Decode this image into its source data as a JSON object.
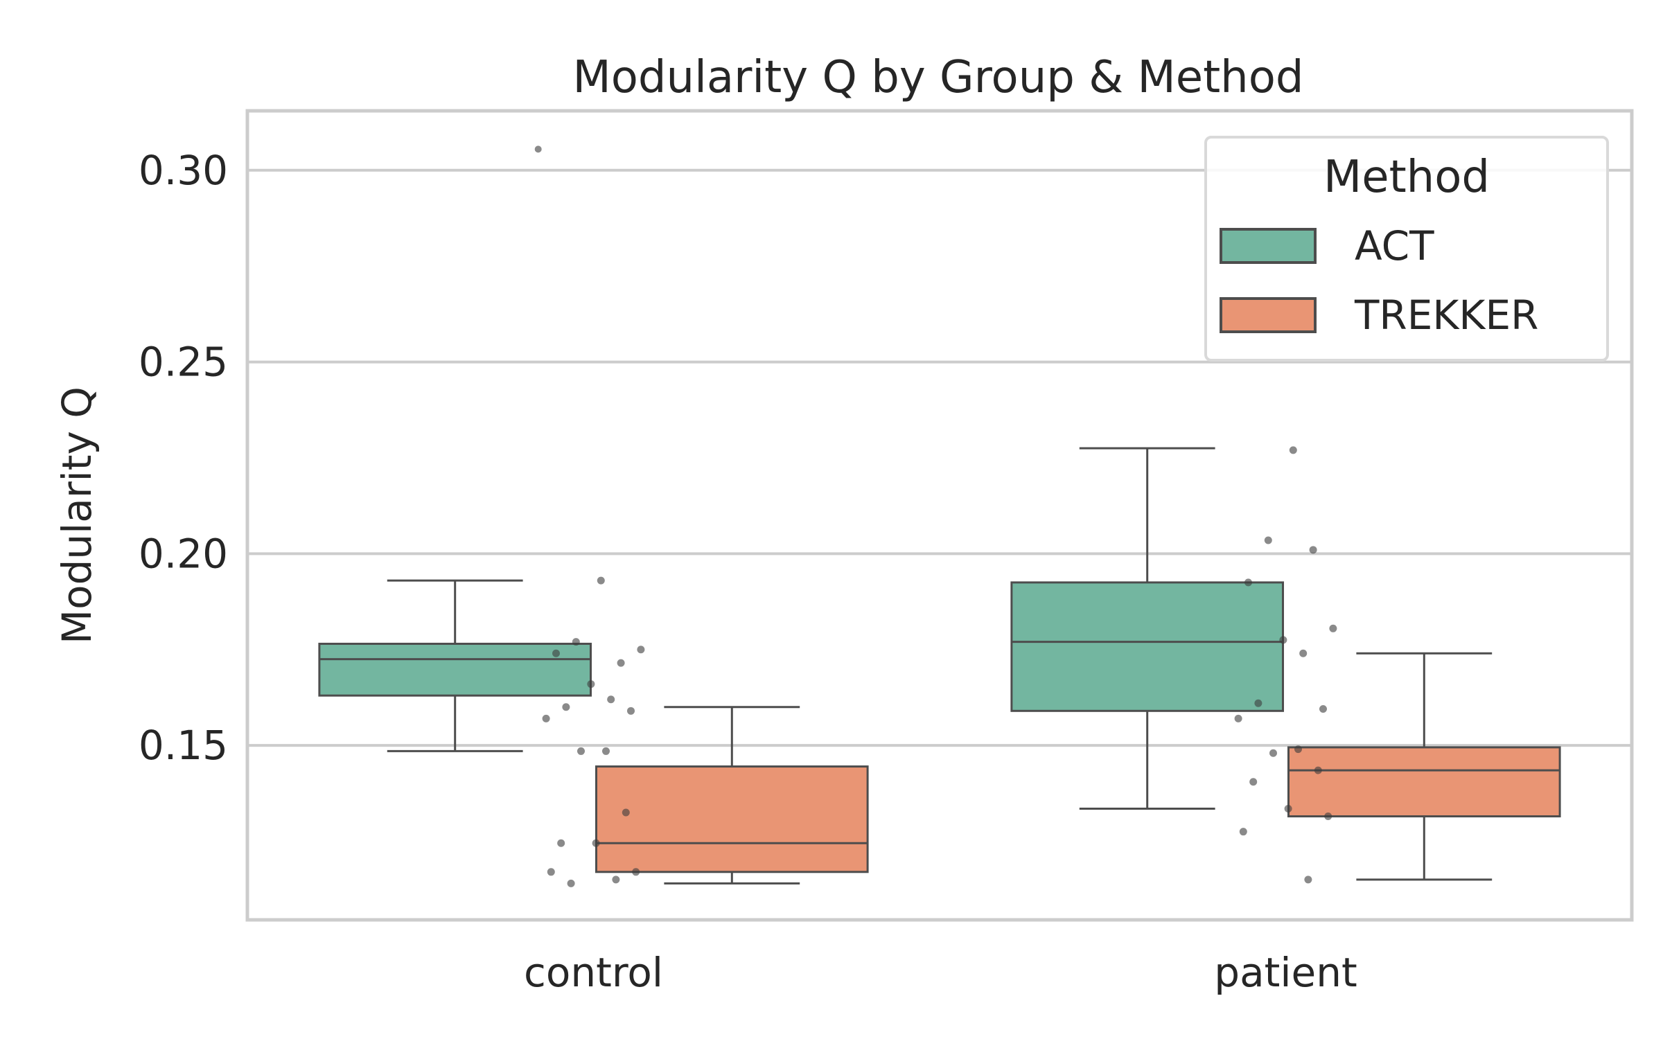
{
  "chart_data": {
    "type": "box",
    "title": "Modularity Q by Group & Method",
    "xlabel": "",
    "ylabel": "Modularity Q",
    "categories": [
      "control",
      "patient"
    ],
    "ylim": [
      0.1045,
      0.3155
    ],
    "yticks": [
      0.15,
      0.2,
      0.25,
      0.3
    ],
    "ytick_labels": [
      "0.15",
      "0.20",
      "0.25",
      "0.30"
    ],
    "grid": "horizontal",
    "legend": {
      "title": "Method",
      "position": "top-right"
    },
    "series": [
      {
        "name": "ACT",
        "color": "#73b6a0",
        "boxes": [
          {
            "category": "control",
            "whisker_low": 0.1485,
            "q1": 0.163,
            "median": 0.1725,
            "q3": 0.1765,
            "whisker_high": 0.193,
            "outliers": [
              0.3055
            ]
          },
          {
            "category": "patient",
            "whisker_low": 0.1335,
            "q1": 0.159,
            "median": 0.177,
            "q3": 0.1925,
            "whisker_high": 0.2275,
            "outliers": []
          }
        ]
      },
      {
        "name": "TREKKER",
        "color": "#e99574",
        "boxes": [
          {
            "category": "control",
            "whisker_low": 0.114,
            "q1": 0.117,
            "median": 0.1245,
            "q3": 0.1445,
            "whisker_high": 0.16,
            "outliers": []
          },
          {
            "category": "patient",
            "whisker_low": 0.115,
            "q1": 0.1315,
            "median": 0.1435,
            "q3": 0.1495,
            "whisker_high": 0.174,
            "outliers": []
          }
        ]
      }
    ],
    "points": [
      {
        "category": "control",
        "values": [
          0.193,
          0.177,
          0.1715,
          0.174,
          0.175,
          0.166,
          0.162,
          0.16,
          0.159,
          0.157,
          0.1485,
          0.1485,
          0.1325,
          0.1245,
          0.1245,
          0.117,
          0.117,
          0.115,
          0.114
        ]
      },
      {
        "category": "patient",
        "values": [
          0.227,
          0.2035,
          0.201,
          0.1925,
          0.1805,
          0.1775,
          0.174,
          0.161,
          0.1595,
          0.157,
          0.149,
          0.148,
          0.1435,
          0.1405,
          0.1335,
          0.1315,
          0.1275,
          0.115
        ]
      }
    ],
    "colors": {
      "box_edge": "#4d4d4d",
      "grid": "#cccccc",
      "frame": "#cccccc",
      "point": "#3c3c3c"
    }
  }
}
